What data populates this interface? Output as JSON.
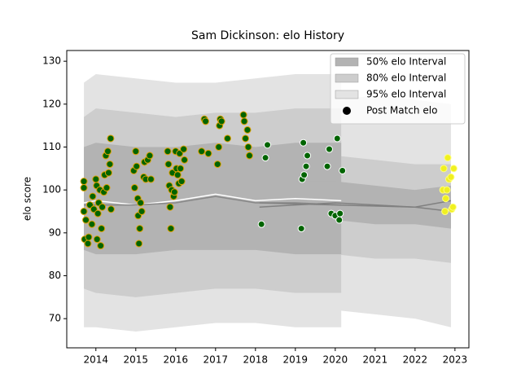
{
  "chart_data": {
    "type": "band-scatter",
    "title": "Sam Dickinson: elo History",
    "y_label": "elo score",
    "xlim": [
      2013.27,
      2023.35
    ],
    "ylim": [
      63.2,
      132.5
    ],
    "xticks": [
      2014,
      2015,
      2016,
      2017,
      2018,
      2019,
      2020,
      2021,
      2022,
      2023
    ],
    "yticks": [
      70,
      80,
      90,
      100,
      110,
      120,
      130
    ],
    "legend_position": "upper right",
    "bands": [
      {
        "name": "95% elo Interval",
        "color": "#e3e3e3",
        "pieces": [
          {
            "x": [
              2013.7,
              2014,
              2015,
              2016,
              2017,
              2018,
              2019,
              2020.15
            ],
            "upper": [
              125,
              127,
              126,
              125,
              125,
              126,
              127,
              127
            ],
            "lower": [
              68,
              68,
              67,
              68,
              69,
              69,
              68,
              68
            ]
          },
          {
            "x": [
              2018.2,
              2019,
              2020,
              2021,
              2022,
              2022.9
            ],
            "upper": [
              119,
              121,
              121,
              122,
              121,
              120
            ],
            "lower": [
              69,
              71,
              72,
              71,
              70,
              68
            ]
          }
        ]
      },
      {
        "name": "80% elo Interval",
        "color": "#cdcdcd",
        "pieces": [
          {
            "x": [
              2013.7,
              2014,
              2015,
              2016,
              2017,
              2018,
              2019,
              2020.15
            ],
            "upper": [
              117,
              119,
              118,
              117,
              118,
              118,
              119,
              119
            ],
            "lower": [
              77,
              76,
              75,
              76,
              77,
              77,
              76,
              76
            ]
          },
          {
            "x": [
              2018.2,
              2019,
              2020,
              2021,
              2022,
              2022.9
            ],
            "upper": [
              107,
              108,
              108,
              107,
              106,
              106
            ],
            "lower": [
              84,
              85,
              85,
              84,
              84,
              83
            ]
          }
        ]
      },
      {
        "name": "50% elo Interval",
        "color": "#b3b3b3",
        "pieces": [
          {
            "x": [
              2013.7,
              2014,
              2015,
              2016,
              2017,
              2018,
              2019,
              2020.15
            ],
            "upper": [
              110,
              111,
              110,
              110,
              111,
              110,
              111,
              111
            ],
            "lower": [
              86,
              85,
              85,
              86,
              86,
              86,
              85,
              85
            ]
          },
          {
            "x": [
              2018.2,
              2019,
              2020,
              2021,
              2022,
              2022.9
            ],
            "upper": [
              101,
              102,
              102,
              101,
              100,
              101
            ],
            "lower": [
              92,
              92,
              93,
              92,
              92,
              91
            ]
          }
        ]
      }
    ],
    "lines": [
      {
        "color": "#ffffff",
        "x": [
          2013.7,
          2014,
          2015,
          2016,
          2017,
          2018,
          2019,
          2020.15
        ],
        "values": [
          97,
          97.5,
          96.5,
          97.5,
          99,
          97.5,
          98,
          97.5
        ]
      },
      {
        "color": "#888888",
        "x": [
          2013.7,
          2015,
          2016,
          2017,
          2018,
          2019,
          2020.15
        ],
        "values": [
          96.5,
          96.5,
          97,
          98.5,
          97,
          97,
          96.5
        ]
      },
      {
        "color": "#808080",
        "x": [
          2018.1,
          2019,
          2020,
          2021,
          2022,
          2022.9
        ],
        "values": [
          96,
          96.5,
          97,
          96.5,
          96,
          97.5
        ]
      },
      {
        "color": "#808080",
        "x": [
          2018.1,
          2020,
          2022,
          2022.9
        ],
        "values": [
          97,
          96.5,
          96,
          95
        ]
      }
    ],
    "scatter": {
      "name": "Post Match elo",
      "legend_color": "#000000",
      "groups": [
        {
          "face": "#006400",
          "edge": "#e0a000",
          "x": [
            2013.7,
            2013.7,
            2013.7,
            2013.72,
            2013.75,
            2013.8,
            2013.82,
            2013.85,
            2013.9,
            2013.92,
            2013.95,
            2014.0,
            2014.02,
            2014.03,
            2014.05,
            2014.07,
            2014.1,
            2014.12,
            2014.14,
            2014.16,
            2014.2,
            2014.22,
            2014.25,
            2014.27,
            2014.3,
            2014.32,
            2014.35,
            2014.37,
            2014.38,
            2014.95,
            2014.97,
            2015.0,
            2015.02,
            2015.05,
            2015.06,
            2015.08,
            2015.1,
            2015.12,
            2015.15,
            2015.2,
            2015.22,
            2015.25,
            2015.3,
            2015.35,
            2015.38,
            2015.8,
            2015.82,
            2015.84,
            2015.86,
            2015.88,
            2015.9,
            2015.92,
            2015.95,
            2015.97,
            2016.0,
            2016.02,
            2016.05,
            2016.08,
            2016.1,
            2016.12,
            2016.15,
            2016.2,
            2016.22,
            2016.65,
            2016.72,
            2016.75,
            2016.82,
            2017.05,
            2017.08,
            2017.1,
            2017.12,
            2017.15,
            2017.3,
            2017.7,
            2017.72,
            2017.75,
            2017.8,
            2017.82,
            2017.85
          ],
          "y": [
            102,
            100.5,
            95,
            88.5,
            93,
            87.5,
            89,
            96.5,
            92,
            98.5,
            95.5,
            102.5,
            101,
            88.5,
            94.5,
            97,
            100,
            87,
            91,
            96,
            99.5,
            103.5,
            108,
            100.5,
            109,
            104,
            106,
            112,
            95.5,
            104.5,
            100.5,
            109,
            105.5,
            98,
            94,
            87.5,
            91,
            97,
            95,
            103,
            106.5,
            102.5,
            107,
            108,
            102.5,
            109,
            106,
            101,
            96,
            91,
            100,
            104,
            98.5,
            99.5,
            109,
            105,
            103.5,
            101.5,
            108.5,
            105,
            102,
            109.5,
            107,
            109,
            116.5,
            116,
            108.5,
            106,
            110,
            115,
            116.5,
            116,
            112,
            117.5,
            116,
            112,
            114,
            110,
            108
          ]
        },
        {
          "face": "#006400",
          "edge": "#ffffff",
          "x": [
            2018.15,
            2018.25,
            2018.3,
            2019.15,
            2019.17,
            2019.2,
            2019.22,
            2019.27,
            2019.3,
            2019.8,
            2019.85,
            2019.9,
            2020.0,
            2020.05,
            2020.1,
            2020.12,
            2020.18
          ],
          "y": [
            92,
            107.5,
            110.5,
            91,
            102.5,
            111,
            103.5,
            105.5,
            108,
            105.5,
            109.5,
            94.5,
            94,
            112,
            93,
            94.5,
            104.5
          ]
        },
        {
          "face": "#f0f020",
          "edge": "#ffff80",
          "x": [
            2022.7,
            2022.72,
            2022.75,
            2022.77,
            2022.8,
            2022.82,
            2022.85,
            2022.9,
            2022.92,
            2022.95,
            2022.97
          ],
          "y": [
            100,
            105,
            95,
            98,
            100,
            107.5,
            102.5,
            103,
            95.5,
            96,
            105
          ]
        }
      ]
    }
  }
}
